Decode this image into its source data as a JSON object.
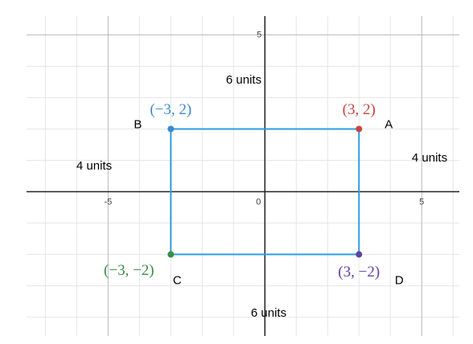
{
  "chart_data": {
    "type": "scatter",
    "xlim": [
      -7.6,
      6.2
    ],
    "ylim": [
      -4.6,
      5.6
    ],
    "xticks": [
      -5,
      0,
      5
    ],
    "yticks": [
      5
    ],
    "xgrid": [
      -7,
      -6,
      -5,
      -4,
      -3,
      -2,
      -1,
      0,
      1,
      2,
      3,
      4,
      5,
      6
    ],
    "ygrid": [
      -4,
      -3,
      -2,
      -1,
      0,
      1,
      2,
      3,
      4,
      5
    ],
    "grid": true,
    "outline_color": "#2d9de0",
    "points": [
      {
        "name": "A",
        "label": "(3, 2)",
        "x": 3,
        "y": 2,
        "color": "#c74440"
      },
      {
        "name": "B",
        "label": "(−3, 2)",
        "x": -3,
        "y": 2,
        "color": "#388ad2"
      },
      {
        "name": "C",
        "label": "(−3, −2)",
        "x": -3,
        "y": -2,
        "color": "#388c46"
      },
      {
        "name": "D",
        "label": "(3, −2)",
        "x": 3,
        "y": -2,
        "color": "#6042a6"
      }
    ],
    "annotations": [
      "6 units",
      "4 units",
      "4 units",
      "6 units"
    ]
  }
}
